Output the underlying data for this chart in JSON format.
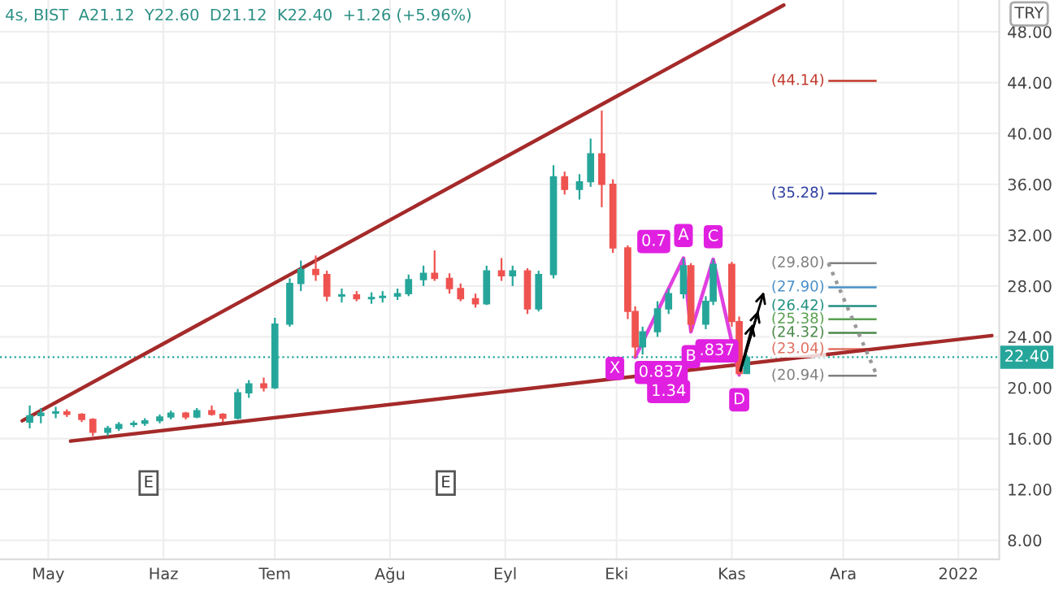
{
  "chart_data": {
    "type": "candlestick",
    "title": "4s, BIST  A21.12  Y22.60  D21.12  K22.40  +1.26 (+5.96%)",
    "x": [
      "2021-04-26",
      "2021-04-29",
      "2021-05-03",
      "2021-05-06",
      "2021-05-10",
      "2021-05-13",
      "2021-05-17",
      "2021-05-20",
      "2021-05-24",
      "2021-05-27",
      "2021-05-31",
      "2021-06-03",
      "2021-06-07",
      "2021-06-10",
      "2021-06-14",
      "2021-06-17",
      "2021-06-21",
      "2021-06-24",
      "2021-06-28",
      "2021-07-01",
      "2021-07-05",
      "2021-07-08",
      "2021-07-12",
      "2021-07-15",
      "2021-07-19",
      "2021-07-23",
      "2021-07-27",
      "2021-07-30",
      "2021-08-03",
      "2021-08-06",
      "2021-08-10",
      "2021-08-13",
      "2021-08-17",
      "2021-08-20",
      "2021-08-24",
      "2021-08-27",
      "2021-08-31",
      "2021-09-03",
      "2021-09-07",
      "2021-09-10",
      "2021-09-14",
      "2021-09-17",
      "2021-09-21",
      "2021-09-24",
      "2021-09-27",
      "2021-09-30",
      "2021-10-04",
      "2021-10-06",
      "2021-10-08",
      "2021-10-12",
      "2021-10-15",
      "2021-10-19",
      "2021-10-21",
      "2021-10-25",
      "2021-10-27",
      "2021-11-01",
      "2021-11-03",
      "2021-11-05"
    ],
    "ohlc": [
      [
        17.3,
        18.6,
        16.8,
        17.8
      ],
      [
        17.8,
        18.4,
        17.2,
        18.0
      ],
      [
        18.0,
        18.5,
        17.6,
        18.1
      ],
      [
        18.1,
        18.3,
        17.7,
        17.9
      ],
      [
        17.9,
        18.0,
        17.3,
        17.5
      ],
      [
        17.5,
        17.6,
        16.2,
        16.5
      ],
      [
        16.5,
        17.0,
        16.2,
        16.8
      ],
      [
        16.8,
        17.3,
        16.6,
        17.1
      ],
      [
        17.1,
        17.4,
        16.9,
        17.2
      ],
      [
        17.2,
        17.6,
        17.0,
        17.4
      ],
      [
        17.4,
        17.9,
        17.2,
        17.7
      ],
      [
        17.7,
        18.2,
        17.5,
        18.0
      ],
      [
        18.0,
        18.1,
        17.5,
        17.7
      ],
      [
        17.7,
        18.4,
        17.6,
        18.2
      ],
      [
        18.2,
        18.6,
        17.8,
        17.9
      ],
      [
        17.9,
        18.0,
        17.3,
        17.6
      ],
      [
        17.6,
        19.9,
        17.5,
        19.6
      ],
      [
        19.6,
        20.6,
        19.2,
        20.3
      ],
      [
        20.3,
        20.8,
        19.7,
        20.0
      ],
      [
        20.0,
        25.5,
        19.9,
        25.0
      ],
      [
        25.0,
        28.6,
        24.8,
        28.2
      ],
      [
        28.2,
        30.0,
        27.6,
        29.3
      ],
      [
        29.3,
        30.4,
        28.4,
        28.9
      ],
      [
        28.9,
        29.2,
        26.8,
        27.2
      ],
      [
        27.2,
        27.8,
        26.7,
        27.3
      ],
      [
        27.3,
        27.6,
        26.8,
        27.0
      ],
      [
        27.0,
        27.5,
        26.6,
        27.1
      ],
      [
        27.1,
        27.6,
        26.7,
        27.2
      ],
      [
        27.2,
        27.8,
        26.9,
        27.4
      ],
      [
        27.4,
        28.9,
        27.2,
        28.5
      ],
      [
        28.5,
        29.6,
        28.0,
        29.0
      ],
      [
        29.0,
        30.8,
        28.4,
        28.6
      ],
      [
        28.6,
        29.0,
        27.4,
        27.8
      ],
      [
        27.8,
        28.2,
        26.8,
        27.0
      ],
      [
        27.0,
        27.4,
        26.3,
        26.6
      ],
      [
        26.6,
        29.6,
        26.5,
        29.2
      ],
      [
        29.2,
        30.2,
        28.4,
        28.8
      ],
      [
        28.8,
        29.6,
        28.0,
        29.2
      ],
      [
        29.2,
        29.4,
        25.8,
        26.2
      ],
      [
        26.2,
        29.2,
        26.0,
        28.9
      ],
      [
        28.9,
        37.5,
        28.6,
        36.6
      ],
      [
        36.6,
        37.0,
        35.2,
        35.6
      ],
      [
        35.6,
        36.8,
        34.8,
        36.2
      ],
      [
        36.2,
        39.6,
        35.8,
        38.4
      ],
      [
        38.4,
        41.8,
        34.2,
        36.0
      ],
      [
        36.0,
        36.4,
        30.6,
        31.0
      ],
      [
        31.0,
        31.2,
        25.4,
        26.0
      ],
      [
        26.0,
        26.4,
        22.4,
        23.2
      ],
      [
        23.2,
        24.8,
        22.6,
        24.4
      ],
      [
        24.4,
        26.8,
        24.0,
        26.2
      ],
      [
        26.2,
        27.8,
        25.8,
        27.4
      ],
      [
        27.4,
        30.2,
        27.0,
        29.6
      ],
      [
        29.6,
        29.8,
        24.4,
        25.0
      ],
      [
        25.0,
        27.2,
        24.6,
        26.8
      ],
      [
        26.8,
        30.1,
        26.5,
        29.7
      ],
      [
        29.7,
        29.9,
        24.8,
        25.2
      ],
      [
        25.2,
        25.6,
        21.0,
        21.12
      ],
      [
        21.12,
        22.6,
        21.12,
        22.4
      ]
    ],
    "series": [
      {
        "type": "line",
        "color": "#a52a2a",
        "x": [
          "2021-04-24",
          "2021-11-15"
        ],
        "values": [
          17.4,
          50.1
        ]
      },
      {
        "type": "line",
        "color": "#a52a2a",
        "x": [
          "2021-05-07",
          "2022-01-10"
        ],
        "values": [
          15.8,
          24.1
        ]
      },
      {
        "type": "line",
        "color": "#e040e0",
        "marker": "none",
        "x": [
          "2021-10-06",
          "2021-10-19",
          "2021-10-21",
          "2021-10-27",
          "2021-11-03"
        ],
        "values": [
          22.4,
          30.2,
          24.4,
          30.1,
          21.0
        ]
      },
      {
        "type": "line",
        "color": "#999999",
        "line_style": "dotted",
        "x": [
          "2021-11-27",
          "2021-12-10"
        ],
        "values": [
          29.8,
          21.0
        ]
      }
    ],
    "xlim": [
      "2021-04-18",
      "2022-01-12"
    ],
    "xticks": [
      {
        "value": "2021-05-01",
        "label": "May"
      },
      {
        "value": "2021-06-01",
        "label": "Haz"
      },
      {
        "value": "2021-07-01",
        "label": "Tem"
      },
      {
        "value": "2021-08-01",
        "label": "Ağu"
      },
      {
        "value": "2021-09-01",
        "label": "Eyl"
      },
      {
        "value": "2021-10-01",
        "label": "Eki"
      },
      {
        "value": "2021-11-01",
        "label": "Kas"
      },
      {
        "value": "2021-12-01",
        "label": "Ara"
      },
      {
        "value": "2022-01-01",
        "label": "2022"
      }
    ],
    "ylim": [
      6.5,
      50.5
    ],
    "yticks": [
      {
        "value": 8,
        "label": "8.00"
      },
      {
        "value": 12,
        "label": "12.00"
      },
      {
        "value": 16,
        "label": "16.00"
      },
      {
        "value": 20,
        "label": "20.00"
      },
      {
        "value": 24,
        "label": "24.00"
      },
      {
        "value": 28,
        "label": "28.00"
      },
      {
        "value": 32,
        "label": "32.00"
      },
      {
        "value": 36,
        "label": "36.00"
      },
      {
        "value": 40,
        "label": "40.00"
      },
      {
        "value": 44,
        "label": "44.00"
      },
      {
        "value": 48,
        "label": "48.00"
      }
    ],
    "ref_lines": [
      {
        "axis": "y",
        "value": 44.14,
        "label": "(44.14)",
        "color": "#c0392b"
      },
      {
        "axis": "y",
        "value": 35.28,
        "label": "(35.28)",
        "color": "#2f3f9f"
      },
      {
        "axis": "y",
        "value": 29.8,
        "label": "(29.80)",
        "color": "#808080"
      },
      {
        "axis": "y",
        "value": 27.9,
        "label": "(27.90)",
        "color": "#4a90c8"
      },
      {
        "axis": "y",
        "value": 26.42,
        "label": "(26.42)",
        "color": "#1f8f80"
      },
      {
        "axis": "y",
        "value": 25.38,
        "label": "(25.38)",
        "color": "#5aa050"
      },
      {
        "axis": "y",
        "value": 24.32,
        "label": "(24.32)",
        "color": "#4a8a4a"
      },
      {
        "axis": "y",
        "value": 23.04,
        "label": "(23.04)",
        "color": "#e07060"
      },
      {
        "axis": "y",
        "value": 20.94,
        "label": "(20.94)",
        "color": "#808080"
      },
      {
        "axis": "y",
        "value": 22.4,
        "label": "22.40",
        "color": "#26a69a",
        "line_style": "dotted"
      }
    ],
    "annotations": [
      {
        "text": "X",
        "x": "2021-10-06",
        "y": 22.4
      },
      {
        "text": "A",
        "x": "2021-10-19",
        "y": 30.2
      },
      {
        "text": "B",
        "x": "2021-10-21",
        "y": 24.4
      },
      {
        "text": "C",
        "x": "2021-10-27",
        "y": 30.1
      },
      {
        "text": "D",
        "x": "2021-11-03",
        "y": 21.0
      },
      {
        "text": "0.7",
        "x": "2021-10-11",
        "y": 31.5
      },
      {
        "text": "0.837",
        "x": "2021-10-13",
        "y": 21.2
      },
      {
        "text": "1.34",
        "x": "2021-10-15",
        "y": 19.7
      },
      {
        "text": ".837",
        "x": "2021-10-28",
        "y": 22.9
      },
      {
        "text": "E",
        "x": "2021-05-28",
        "y": 12.5
      },
      {
        "text": "E",
        "x": "2021-08-16",
        "y": 12.5
      },
      "TRY"
    ],
    "grid": true
  }
}
